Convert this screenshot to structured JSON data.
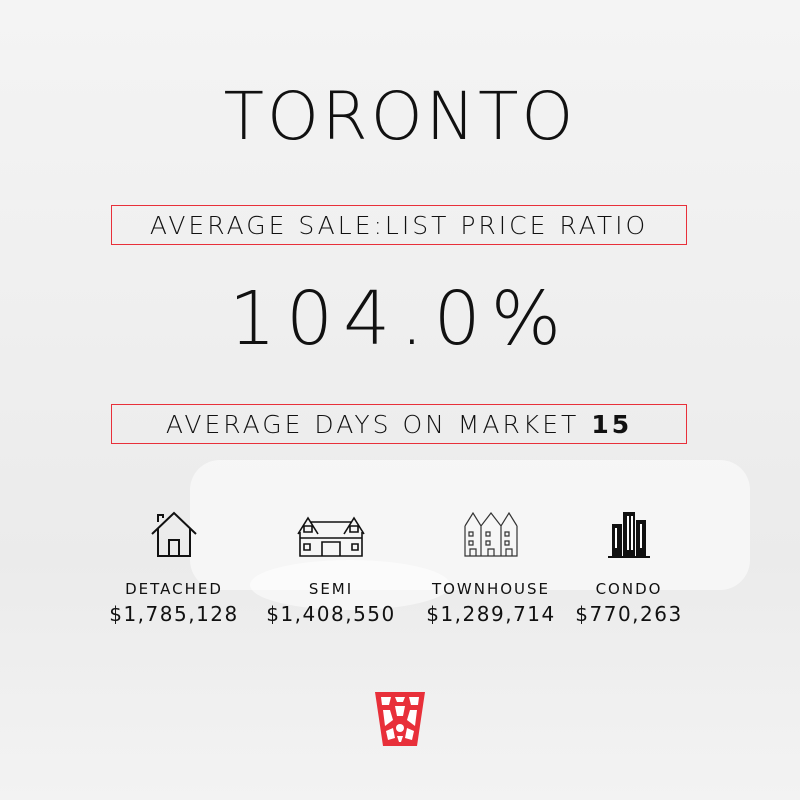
{
  "title": "TORONTO",
  "ratio": {
    "label": "AVERAGE SALE:LIST PRICE RATIO",
    "value": "104.0%"
  },
  "days_on_market": {
    "label": "AVERAGE DAYS ON MARKET",
    "value": "15"
  },
  "property_types": [
    {
      "icon": "detached-house-icon",
      "label": "DETACHED",
      "price": "$1,785,128"
    },
    {
      "icon": "semi-detached-icon",
      "label": "SEMI",
      "price": "$1,408,550"
    },
    {
      "icon": "townhouse-icon",
      "label": "TOWNHOUSE",
      "price": "$1,289,714"
    },
    {
      "icon": "condo-building-icon",
      "label": "CONDO",
      "price": "$770,263"
    }
  ],
  "colors": {
    "accent": "#e8303a",
    "text": "#111111"
  }
}
